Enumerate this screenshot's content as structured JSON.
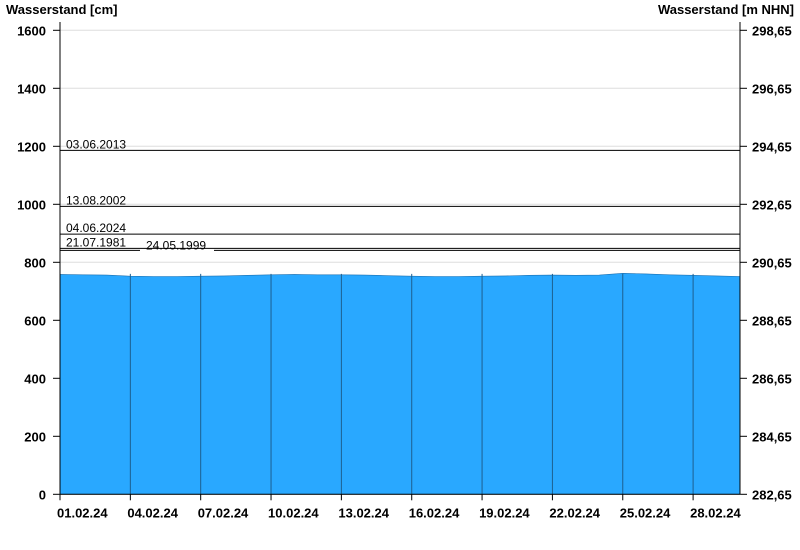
{
  "chart_data": {
    "type": "area",
    "ylabel_left": "Wasserstand [cm]",
    "ylabel_right": "Wasserstand [m NHN]",
    "ylim": [
      0,
      1600
    ],
    "y_ticks": [
      0,
      200,
      400,
      600,
      800,
      1000,
      1200,
      1400,
      1600
    ],
    "y_right_ticks": [
      "282,65",
      "284,65",
      "286,65",
      "288,65",
      "290,65",
      "292,65",
      "294,65",
      "296,65",
      "298,65"
    ],
    "x_ticks": [
      "01.02.24",
      "04.02.24",
      "07.02.24",
      "10.02.24",
      "13.02.24",
      "16.02.24",
      "19.02.24",
      "22.02.24",
      "25.02.24",
      "28.02.24"
    ],
    "x_range_days": [
      0,
      29
    ],
    "grid": true,
    "fill_color": "#29a8ff",
    "series": {
      "x_day": [
        0,
        1,
        2,
        3,
        4,
        5,
        6,
        7,
        8,
        9,
        10,
        11,
        12,
        13,
        14,
        15,
        16,
        17,
        18,
        19,
        20,
        21,
        22,
        23,
        24,
        25,
        26,
        27,
        28,
        29
      ],
      "values": [
        758,
        757,
        756,
        752,
        751,
        751,
        752,
        753,
        755,
        757,
        758,
        757,
        757,
        756,
        754,
        752,
        751,
        751,
        752,
        753,
        755,
        756,
        755,
        756,
        762,
        760,
        757,
        755,
        753,
        751
      ]
    },
    "reference_lines": [
      {
        "label": "03.06.2013",
        "value": 1186
      },
      {
        "label": "13.08.2002",
        "value": 993
      },
      {
        "label": "04.06.2024",
        "value": 897
      },
      {
        "label": "21.07.1981",
        "value": 848
      },
      {
        "label": "24.05.1999",
        "value": 841
      }
    ]
  }
}
